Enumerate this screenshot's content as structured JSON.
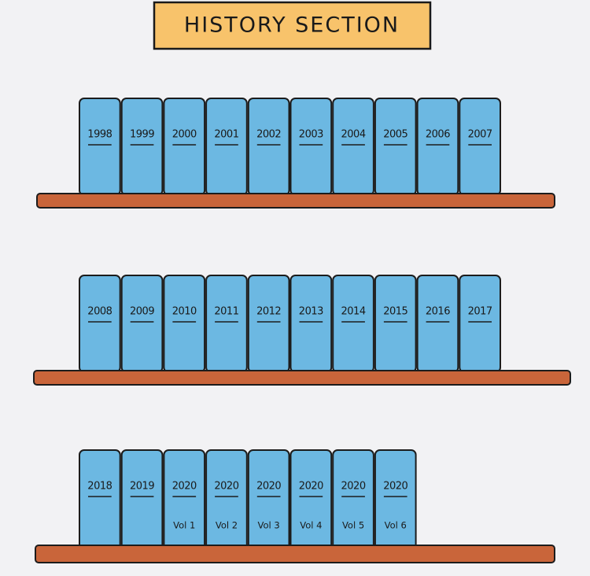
{
  "sign": {
    "title": "HISTORY SECTION"
  },
  "shelves": [
    {
      "books": [
        {
          "label": "1998"
        },
        {
          "label": "1999"
        },
        {
          "label": "2000"
        },
        {
          "label": "2001"
        },
        {
          "label": "2002"
        },
        {
          "label": "2003"
        },
        {
          "label": "2004"
        },
        {
          "label": "2005"
        },
        {
          "label": "2006"
        },
        {
          "label": "2007"
        }
      ]
    },
    {
      "books": [
        {
          "label": "2008"
        },
        {
          "label": "2009"
        },
        {
          "label": "2010"
        },
        {
          "label": "2011"
        },
        {
          "label": "2012"
        },
        {
          "label": "2013"
        },
        {
          "label": "2014"
        },
        {
          "label": "2015"
        },
        {
          "label": "2016"
        },
        {
          "label": "2017"
        }
      ]
    },
    {
      "books": [
        {
          "label": "2018"
        },
        {
          "label": "2019"
        },
        {
          "label": "2020",
          "volume": "Vol 1"
        },
        {
          "label": "2020",
          "volume": "Vol 2"
        },
        {
          "label": "2020",
          "volume": "Vol 3"
        },
        {
          "label": "2020",
          "volume": "Vol 4"
        },
        {
          "label": "2020",
          "volume": "Vol 5"
        },
        {
          "label": "2020",
          "volume": "Vol 6"
        }
      ]
    }
  ]
}
